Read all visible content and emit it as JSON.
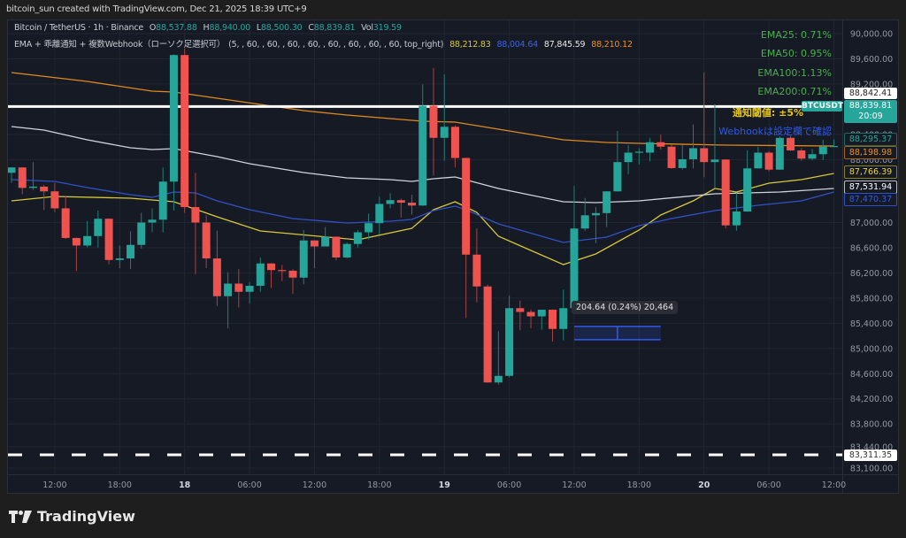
{
  "watermark": "bitcoin_sun created with TradingView.com, Dec 21, 2025 18:39 UTC+9",
  "legend": {
    "symbol": "Bitcoin / TetherUS · 1h · Binance",
    "o_label": "O",
    "o": "88,537.88",
    "h_label": "H",
    "h": "88,940.00",
    "l_label": "L",
    "l": "88,500.30",
    "c_label": "C",
    "c": "88,839.81",
    "vol_label": "Vol",
    "vol": "319.59",
    "indicator_name": "EMA + 乖離通知 + 複数Webhook（ローソク足選択可）",
    "indicator_params": "(5, , 60, , 60, , 60, , 60, , 60, , 60, , 60, , 60, top_right)",
    "indicator_values": [
      {
        "value": "88,212.83",
        "color": "#d8c838"
      },
      {
        "value": "88,004.64",
        "color": "#3b63e0"
      },
      {
        "value": "87,845.59",
        "color": "#e8e8e8"
      },
      {
        "value": "88,210.12",
        "color": "#f0901c"
      }
    ]
  },
  "overlay_text": {
    "ema25": "EMA25: 0.71%",
    "ema50": "EMA50: 0.95%",
    "ema100": "EMA100:1.13%",
    "ema200": "EMA200:0.71%",
    "threshold": "通知閾値: ±5%",
    "webhook": "Webhookは設定欄で確認",
    "green": "#4caf50",
    "yellow": "#e6c619",
    "blue": "#2f5bea"
  },
  "price_labels": {
    "alert_line": "88,842.41",
    "symbol_tag": "BTCUSDT",
    "last_price": "88,839.81",
    "countdown": "20:09",
    "ema_a": "88,295.37",
    "ema_orange": "88,198.98",
    "ema_yellow": "87,766.39",
    "ema_white": "87,531.94",
    "ema_blue": "87,470.37",
    "dashed_line": "83,311.35"
  },
  "measure_tooltip": "204.64 (0.24%) 20,464",
  "footer": {
    "brand": "TradingView"
  },
  "chart_data": {
    "type": "candlestick",
    "up_color": "#26a69a",
    "down_color": "#ef5350",
    "grid": true,
    "ylim": [
      83000,
      90100
    ],
    "y_ticks": [
      {
        "value": 90000,
        "label": "90,000.00"
      },
      {
        "value": 89600,
        "label": "89,600.00"
      },
      {
        "value": 89200,
        "label": "89,200.00"
      },
      {
        "value": 88400,
        "label": "88,400.00"
      },
      {
        "value": 88000,
        "label": "88,000.00"
      },
      {
        "value": 87000,
        "label": "87,000.00"
      },
      {
        "value": 86600,
        "label": "86,600.00"
      },
      {
        "value": 86200,
        "label": "86,200.00"
      },
      {
        "value": 85800,
        "label": "85,800.00"
      },
      {
        "value": 85400,
        "label": "85,400.00"
      },
      {
        "value": 85000,
        "label": "85,000.00"
      },
      {
        "value": 84600,
        "label": "84,600.00"
      },
      {
        "value": 84200,
        "label": "84,200.00"
      },
      {
        "value": 83800,
        "label": "83,800.00"
      },
      {
        "value": 83440,
        "label": "83,440.00"
      },
      {
        "value": 83100,
        "label": "83,100.00"
      }
    ],
    "x_ticks": [
      {
        "time": "2025-12-17 12:00",
        "label": "12:00"
      },
      {
        "time": "2025-12-17 18:00",
        "label": "18:00"
      },
      {
        "time": "2025-12-18 00:00",
        "label": "18",
        "bold": true
      },
      {
        "time": "2025-12-18 06:00",
        "label": "06:00"
      },
      {
        "time": "2025-12-18 12:00",
        "label": "12:00"
      },
      {
        "time": "2025-12-18 18:00",
        "label": "18:00"
      },
      {
        "time": "2025-12-19 00:00",
        "label": "19",
        "bold": true
      },
      {
        "time": "2025-12-19 06:00",
        "label": "06:00"
      },
      {
        "time": "2025-12-19 12:00",
        "label": "12:00"
      },
      {
        "time": "2025-12-19 18:00",
        "label": "18:00"
      },
      {
        "time": "2025-12-20 00:00",
        "label": "20",
        "bold": true
      },
      {
        "time": "2025-12-20 06:00",
        "label": "06:00"
      },
      {
        "time": "2025-12-20 12:00",
        "label": "12:00"
      }
    ],
    "candles_columns": [
      "time",
      "open",
      "high",
      "low",
      "close"
    ],
    "candles": [
      [
        "2025-12-17 08:00",
        87790,
        87875,
        87630,
        87875
      ],
      [
        "2025-12-17 09:00",
        87875,
        87880,
        87450,
        87550
      ],
      [
        "2025-12-17 10:00",
        87550,
        87960,
        87515,
        87570
      ],
      [
        "2025-12-17 11:00",
        87570,
        87600,
        87200,
        87495
      ],
      [
        "2025-12-17 12:00",
        87495,
        87630,
        87165,
        87225
      ],
      [
        "2025-12-17 13:00",
        87225,
        87415,
        86740,
        86755
      ],
      [
        "2025-12-17 14:00",
        86755,
        86760,
        86230,
        86635
      ],
      [
        "2025-12-17 15:00",
        86635,
        87025,
        86605,
        86785
      ],
      [
        "2025-12-17 16:00",
        86785,
        87190,
        86605,
        87060
      ],
      [
        "2025-12-17 17:00",
        87060,
        87065,
        86335,
        86405
      ],
      [
        "2025-12-17 18:00",
        86405,
        86635,
        86275,
        86430
      ],
      [
        "2025-12-17 19:00",
        86430,
        86860,
        86260,
        86645
      ],
      [
        "2025-12-17 20:00",
        86645,
        87155,
        86585,
        87000
      ],
      [
        "2025-12-17 21:00",
        87000,
        87225,
        86850,
        87045
      ],
      [
        "2025-12-17 22:00",
        87045,
        87875,
        86845,
        87650
      ],
      [
        "2025-12-17 23:00",
        87650,
        89670,
        87190,
        89660
      ],
      [
        "2025-12-18 00:00",
        89660,
        89765,
        87155,
        87245
      ],
      [
        "2025-12-18 01:00",
        87245,
        87790,
        86180,
        87000
      ],
      [
        "2025-12-18 02:00",
        87000,
        87115,
        86275,
        86430
      ],
      [
        "2025-12-18 03:00",
        86430,
        86870,
        85675,
        85830
      ],
      [
        "2025-12-18 04:00",
        85830,
        86210,
        85320,
        86030
      ],
      [
        "2025-12-18 05:00",
        86030,
        86260,
        85650,
        85900
      ],
      [
        "2025-12-18 06:00",
        85900,
        86055,
        85710,
        85995
      ],
      [
        "2025-12-18 07:00",
        85995,
        86445,
        85900,
        86350
      ],
      [
        "2025-12-18 08:00",
        86350,
        86355,
        85960,
        86245
      ],
      [
        "2025-12-18 09:00",
        86245,
        86325,
        86070,
        86235
      ],
      [
        "2025-12-18 10:00",
        86235,
        86260,
        85865,
        86125
      ],
      [
        "2025-12-18 11:00",
        86125,
        86880,
        86020,
        86715
      ],
      [
        "2025-12-18 12:00",
        86715,
        86720,
        86275,
        86620
      ],
      [
        "2025-12-18 13:00",
        86620,
        86930,
        86620,
        86775
      ],
      [
        "2025-12-18 14:00",
        86775,
        86780,
        86400,
        86445
      ],
      [
        "2025-12-18 15:00",
        86445,
        86685,
        86430,
        86660
      ],
      [
        "2025-12-18 16:00",
        86660,
        86880,
        86605,
        86845
      ],
      [
        "2025-12-18 17:00",
        86845,
        87140,
        86730,
        86990
      ],
      [
        "2025-12-18 18:00",
        86990,
        87410,
        86810,
        87295
      ],
      [
        "2025-12-18 19:00",
        87295,
        87465,
        87225,
        87355
      ],
      [
        "2025-12-18 20:00",
        87355,
        87380,
        87080,
        87315
      ],
      [
        "2025-12-18 21:00",
        87315,
        87440,
        87125,
        87270
      ],
      [
        "2025-12-18 22:00",
        87270,
        89195,
        87265,
        88855
      ],
      [
        "2025-12-18 23:00",
        88855,
        89455,
        87745,
        88345
      ],
      [
        "2025-12-19 00:00",
        88345,
        89355,
        87980,
        88520
      ],
      [
        "2025-12-19 01:00",
        88520,
        88545,
        87875,
        88025
      ],
      [
        "2025-12-19 02:00",
        88025,
        88030,
        85485,
        86490
      ],
      [
        "2025-12-19 03:00",
        86490,
        86905,
        85735,
        85985
      ],
      [
        "2025-12-19 04:00",
        85985,
        86015,
        84455,
        84460
      ],
      [
        "2025-12-19 05:00",
        84460,
        85275,
        84425,
        84565
      ],
      [
        "2025-12-19 06:00",
        84565,
        85840,
        84540,
        85640
      ],
      [
        "2025-12-19 07:00",
        85640,
        85760,
        85290,
        85580
      ],
      [
        "2025-12-19 08:00",
        85580,
        85620,
        85320,
        85510
      ],
      [
        "2025-12-19 09:00",
        85510,
        85615,
        85300,
        85615
      ],
      [
        "2025-12-19 10:00",
        85615,
        85620,
        85110,
        85310
      ],
      [
        "2025-12-19 11:00",
        85310,
        85935,
        85130,
        85640
      ],
      [
        "2025-12-19 12:00",
        85640,
        87580,
        85635,
        86905
      ],
      [
        "2025-12-19 13:00",
        86905,
        87390,
        86870,
        87115
      ],
      [
        "2025-12-19 14:00",
        87115,
        87245,
        86670,
        87150
      ],
      [
        "2025-12-19 15:00",
        87150,
        87500,
        86930,
        87495
      ],
      [
        "2025-12-19 16:00",
        87495,
        88455,
        87490,
        87960
      ],
      [
        "2025-12-19 17:00",
        87960,
        88230,
        87765,
        88110
      ],
      [
        "2025-12-19 18:00",
        88110,
        88180,
        87920,
        88125
      ],
      [
        "2025-12-19 19:00",
        88110,
        88345,
        87970,
        88275
      ],
      [
        "2025-12-19 20:00",
        88275,
        88395,
        88160,
        88205
      ],
      [
        "2025-12-19 21:00",
        88205,
        88235,
        87850,
        87865
      ],
      [
        "2025-12-19 22:00",
        87865,
        88230,
        87840,
        88005
      ],
      [
        "2025-12-19 23:00",
        88005,
        88560,
        87860,
        88180
      ],
      [
        "2025-12-20 00:00",
        88180,
        89385,
        87720,
        87960
      ],
      [
        "2025-12-20 01:00",
        87960,
        88880,
        87545,
        88000
      ],
      [
        "2025-12-20 02:00",
        88000,
        88005,
        86905,
        86955
      ],
      [
        "2025-12-20 03:00",
        86955,
        87470,
        86870,
        87175
      ],
      [
        "2025-12-20 04:00",
        87175,
        88145,
        87170,
        87860
      ],
      [
        "2025-12-20 05:00",
        87860,
        88205,
        87855,
        88110
      ],
      [
        "2025-12-20 06:00",
        88110,
        88135,
        87810,
        87840
      ],
      [
        "2025-12-20 07:00",
        87840,
        88370,
        87835,
        88345
      ],
      [
        "2025-12-20 08:00",
        88345,
        88375,
        88135,
        88145
      ],
      [
        "2025-12-20 09:00",
        88145,
        88180,
        87980,
        88015
      ],
      [
        "2025-12-20 10:00",
        88015,
        88170,
        87990,
        88085
      ],
      [
        "2025-12-20 11:00",
        88085,
        88315,
        87990,
        88205
      ],
      [
        "2025-12-20 12:00",
        88205,
        88320,
        88200,
        88215
      ]
    ],
    "lines": [
      {
        "color": "#d8c838",
        "points": [
          [
            "2025-12-17 08:00",
            87344
          ],
          [
            "2025-12-17 12:00",
            87414
          ],
          [
            "2025-12-17 19:00",
            87386
          ],
          [
            "2025-12-17 23:00",
            87330
          ],
          [
            "2025-12-18 03:00",
            87091
          ],
          [
            "2025-12-18 07:00",
            86866
          ],
          [
            "2025-12-18 16:00",
            86726
          ],
          [
            "2025-12-18 21:00",
            86908
          ],
          [
            "2025-12-18 23:00",
            87203
          ],
          [
            "2025-12-19 01:00",
            87330
          ],
          [
            "2025-12-19 03:00",
            87161
          ],
          [
            "2025-12-19 05:00",
            86782
          ],
          [
            "2025-12-19 08:00",
            86557
          ],
          [
            "2025-12-19 11:00",
            86332
          ],
          [
            "2025-12-19 14:00",
            86501
          ],
          [
            "2025-12-19 18:00",
            86880
          ],
          [
            "2025-12-19 20:00",
            87119
          ],
          [
            "2025-12-19 23:00",
            87344
          ],
          [
            "2025-12-20 01:00",
            87541
          ],
          [
            "2025-12-20 03:00",
            87485
          ],
          [
            "2025-12-20 06:00",
            87625
          ],
          [
            "2025-12-20 09:00",
            87681
          ],
          [
            "2025-12-20 12:00",
            87780
          ]
        ]
      },
      {
        "color": "#2f52c8",
        "points": [
          [
            "2025-12-17 08:00",
            87681
          ],
          [
            "2025-12-17 12:00",
            87653
          ],
          [
            "2025-12-17 15:00",
            87555
          ],
          [
            "2025-12-17 19:00",
            87442
          ],
          [
            "2025-12-17 21:00",
            87400
          ],
          [
            "2025-12-17 23:00",
            87485
          ],
          [
            "2025-12-18 01:00",
            87471
          ],
          [
            "2025-12-18 03:00",
            87344
          ],
          [
            "2025-12-18 06:00",
            87203
          ],
          [
            "2025-12-18 10:00",
            87063
          ],
          [
            "2025-12-18 15:00",
            86993
          ],
          [
            "2025-12-18 19:00",
            87021
          ],
          [
            "2025-12-18 21:00",
            87049
          ],
          [
            "2025-12-18 23:00",
            87189
          ],
          [
            "2025-12-19 01:00",
            87260
          ],
          [
            "2025-12-19 02:00",
            87203
          ],
          [
            "2025-12-19 05:00",
            86979
          ],
          [
            "2025-12-19 11:00",
            86683
          ],
          [
            "2025-12-19 15:00",
            86768
          ],
          [
            "2025-12-19 18:00",
            86950
          ],
          [
            "2025-12-19 21:00",
            87063
          ],
          [
            "2025-12-20 01:00",
            87189
          ],
          [
            "2025-12-20 05:00",
            87274
          ],
          [
            "2025-12-20 09:00",
            87344
          ],
          [
            "2025-12-20 12:00",
            87485
          ]
        ]
      },
      {
        "color": "#d1d4dc",
        "points": [
          [
            "2025-12-17 08:00",
            88524
          ],
          [
            "2025-12-17 11:00",
            88468
          ],
          [
            "2025-12-17 15:00",
            88314
          ],
          [
            "2025-12-17 19:00",
            88187
          ],
          [
            "2025-12-17 21:00",
            88159
          ],
          [
            "2025-12-17 23:00",
            88173
          ],
          [
            "2025-12-18 03:00",
            88047
          ],
          [
            "2025-12-18 06:00",
            87934
          ],
          [
            "2025-12-18 11:00",
            87794
          ],
          [
            "2025-12-18 15:00",
            87709
          ],
          [
            "2025-12-18 19:00",
            87681
          ],
          [
            "2025-12-18 21:00",
            87653
          ],
          [
            "2025-12-18 23:00",
            87695
          ],
          [
            "2025-12-19 01:00",
            87723
          ],
          [
            "2025-12-19 05:00",
            87541
          ],
          [
            "2025-12-19 11:00",
            87330
          ],
          [
            "2025-12-19 14:00",
            87316
          ],
          [
            "2025-12-19 18:00",
            87344
          ],
          [
            "2025-12-20 01:00",
            87456
          ],
          [
            "2025-12-20 07:00",
            87485
          ],
          [
            "2025-12-20 12:00",
            87541
          ]
        ]
      },
      {
        "color": "#e08a1e",
        "points": [
          [
            "2025-12-17 08:00",
            89382
          ],
          [
            "2025-12-17 15:00",
            89241
          ],
          [
            "2025-12-17 21:00",
            89087
          ],
          [
            "2025-12-17 23:00",
            89073
          ],
          [
            "2025-12-18 03:00",
            88974
          ],
          [
            "2025-12-18 11:00",
            88777
          ],
          [
            "2025-12-18 15:00",
            88707
          ],
          [
            "2025-12-18 19:00",
            88651
          ],
          [
            "2025-12-18 22:00",
            88609
          ],
          [
            "2025-12-19 01:00",
            88595
          ],
          [
            "2025-12-19 05:00",
            88482
          ],
          [
            "2025-12-19 11:00",
            88314
          ],
          [
            "2025-12-19 15:00",
            88271
          ],
          [
            "2025-12-19 18:00",
            88257
          ],
          [
            "2025-12-20 02:00",
            88229
          ],
          [
            "2025-12-20 12:00",
            88215
          ]
        ]
      }
    ],
    "horizontal_lines": [
      {
        "price": 88842.41,
        "style": "solid",
        "color": "#ffffff"
      },
      {
        "price": 83311.35,
        "style": "dashed",
        "color": "#ffffff"
      }
    ],
    "measure_box": {
      "from": "2025-12-19 12:00",
      "to": "2025-12-19 20:00",
      "top": 85350,
      "bottom": 85140,
      "color": "#2f5bea"
    }
  }
}
